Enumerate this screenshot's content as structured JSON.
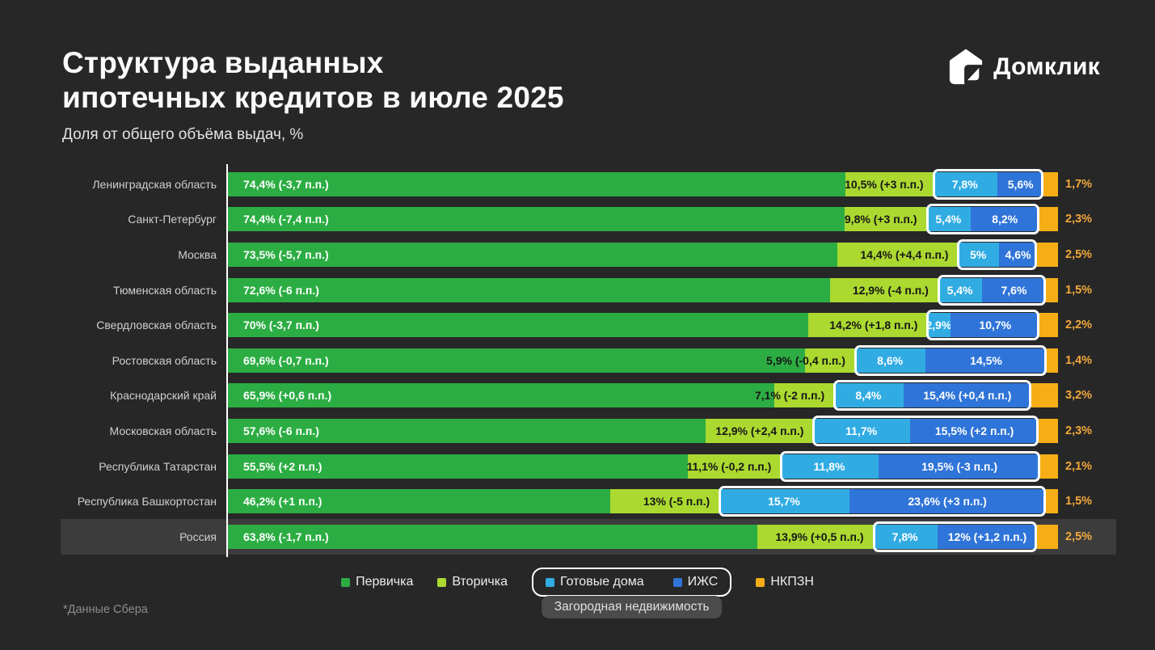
{
  "header": {
    "title_line1": "Структура выданных",
    "title_line2": "ипотечных кредитов в июле 2025",
    "subtitle": "Доля от общего объёма выдач, %"
  },
  "logo": {
    "text": "Домклик"
  },
  "footnote": "*Данные Сбера",
  "colors": {
    "background": "#272727",
    "highlight_row": "#3C3C3C",
    "nkpzn_label_text": "#F2A93B",
    "axis_line": "#FFFFFF"
  },
  "legend": {
    "items": [
      {
        "key": "primary",
        "label": "Первичка",
        "color": "#2CAD43"
      },
      {
        "key": "secondary",
        "label": "Вторичка",
        "color": "#ABD930"
      },
      {
        "key": "houses",
        "label": "Готовые дома",
        "color": "#31ACE3"
      },
      {
        "key": "izhs",
        "label": "ИЖС",
        "color": "#2F74D8"
      },
      {
        "key": "nkpzn",
        "label": "НКПЗН",
        "color": "#F6AE16"
      }
    ],
    "group_label": "Загородная недвижимость",
    "grouped_members": [
      "Готовые дома",
      "ИЖС"
    ]
  },
  "chart_data": {
    "type": "bar",
    "orientation": "horizontal",
    "stacked": true,
    "unit": "%",
    "xlim": [
      0,
      100
    ],
    "grid": false,
    "highlighted_category": "Россия",
    "categories": [
      "Ленинградская область",
      "Санкт-Петербург",
      "Москва",
      "Тюменская область",
      "Свердловская область",
      "Ростовская область",
      "Краснодарский край",
      "Московская область",
      "Республика Татарстан",
      "Республика Башкортостан",
      "Россия"
    ],
    "series": [
      {
        "name": "Первичка",
        "color": "#2CAD43",
        "values": [
          74.4,
          74.4,
          73.5,
          72.6,
          70,
          69.6,
          65.9,
          57.6,
          55.5,
          46.2,
          63.8
        ],
        "labels": [
          "74,4% (-3,7 п.п.)",
          "74,4% (-7,4 п.п.)",
          "73,5% (-5,7 п.п.)",
          "72,6% (-6 п.п.)",
          "70% (-3,7 п.п.)",
          "69,6% (-0,7 п.п.)",
          "65,9% (+0,6 п.п.)",
          "57,6% (-6 п.п.)",
          "55,5% (+2 п.п.)",
          "46,2% (+1 п.п.)",
          "63,8% (-1,7 п.п.)"
        ]
      },
      {
        "name": "Вторичка",
        "color": "#ABD930",
        "values": [
          10.5,
          9.8,
          14.4,
          12.9,
          14.2,
          5.9,
          7.1,
          12.9,
          11.1,
          13,
          13.9
        ],
        "labels": [
          "10,5% (+3 п.п.)",
          "9,8% (+3 п.п.)",
          "14,4% (+4,4 п.п.)",
          "12,9% (-4 п.п.)",
          "14,2% (+1,8 п.п.)",
          "5,9% (-0,4 п.п.)",
          "7,1% (-2 п.п.)",
          "12,9% (+2,4 п.п.)",
          "11,1% (-0,2 п.п.)",
          "13% (-5 п.п.)",
          "13,9% (+0,5 п.п.)"
        ]
      },
      {
        "name": "Готовые дома",
        "color": "#31ACE3",
        "values": [
          7.8,
          5.4,
          5,
          5.4,
          2.9,
          8.6,
          8.4,
          11.7,
          11.8,
          15.7,
          7.8
        ],
        "labels": [
          "7,8%",
          "5,4%",
          "5%",
          "5,4%",
          "2,9%",
          "8,6%",
          "8,4%",
          "11,7%",
          "11,8%",
          "15,7%",
          "7,8%"
        ]
      },
      {
        "name": "ИЖС",
        "color": "#2F74D8",
        "values": [
          5.6,
          8.2,
          4.6,
          7.6,
          10.7,
          14.5,
          15.4,
          15.5,
          19.5,
          23.6,
          12
        ],
        "labels": [
          "5,6%",
          "8,2%",
          "4,6%",
          "7,6%",
          "10,7%",
          "14,5%",
          "15,4% (+0,4 п.п.)",
          "15,5% (+2 п.п.)",
          "19,5% (-3 п.п.)",
          "23,6% (+3 п.п.)",
          "12% (+1,2 п.п.)"
        ]
      },
      {
        "name": "НКПЗН",
        "color": "#F6AE16",
        "values": [
          1.7,
          2.3,
          2.5,
          1.5,
          2.2,
          1.4,
          3.2,
          2.3,
          2.1,
          1.5,
          2.5
        ],
        "labels": [
          "1,7%",
          "2,3%",
          "2,5%",
          "1,5%",
          "2,2%",
          "1,4%",
          "3,2%",
          "2,3%",
          "2,1%",
          "1,5%",
          "2,5%"
        ]
      }
    ]
  }
}
